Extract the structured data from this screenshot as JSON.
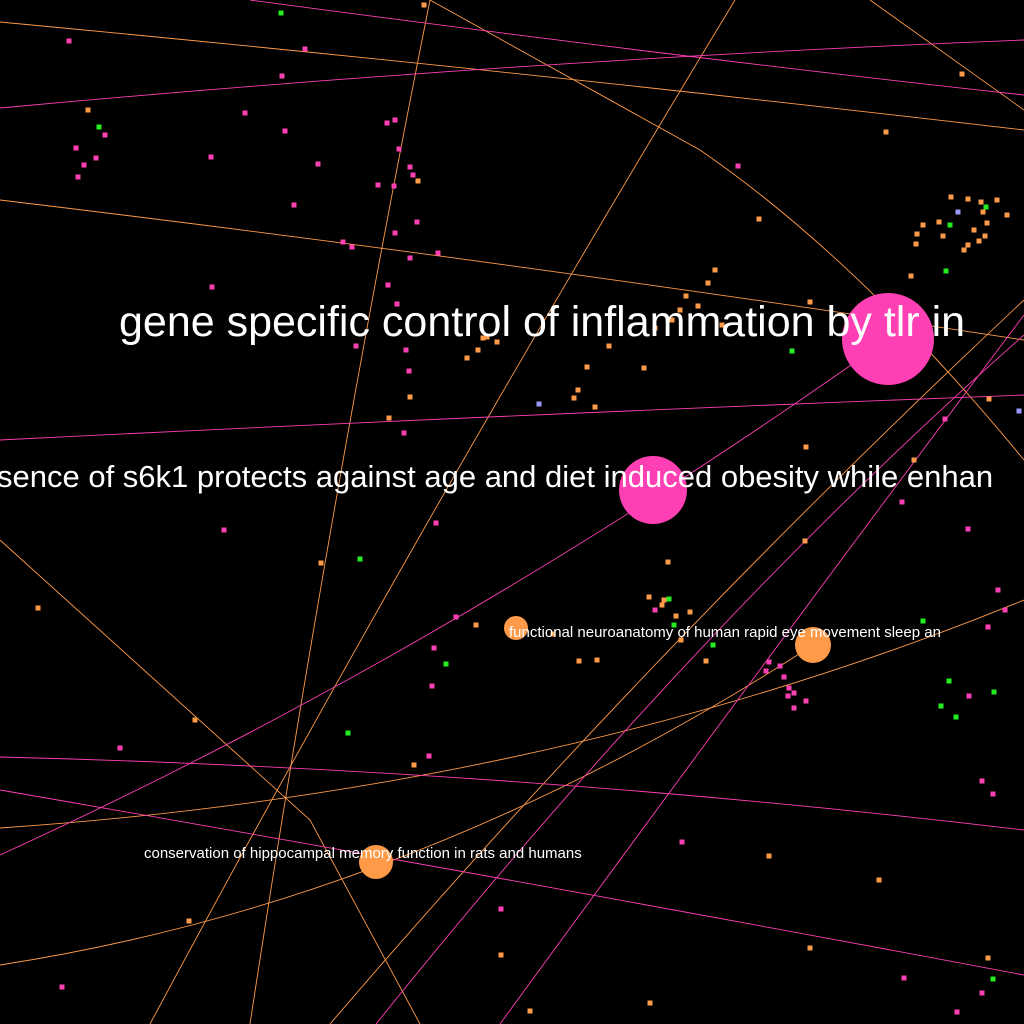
{
  "colors": {
    "background": "#000000",
    "pink": "#ff3fb4",
    "orange": "#ff9a48",
    "green": "#22ee22",
    "violet": "#9999ff",
    "label": "#ffffff"
  },
  "labels": {
    "node_tlr": "gene specific control of inflammation by tlr in",
    "node_s6k1": "sence of s6k1 protects against age and diet induced obesity while enhan",
    "node_rem": "functional neuroanatomy of human rapid eye movement sleep an",
    "node_hippo": "conservation of hippocampal memory function in rats and humans"
  }
}
